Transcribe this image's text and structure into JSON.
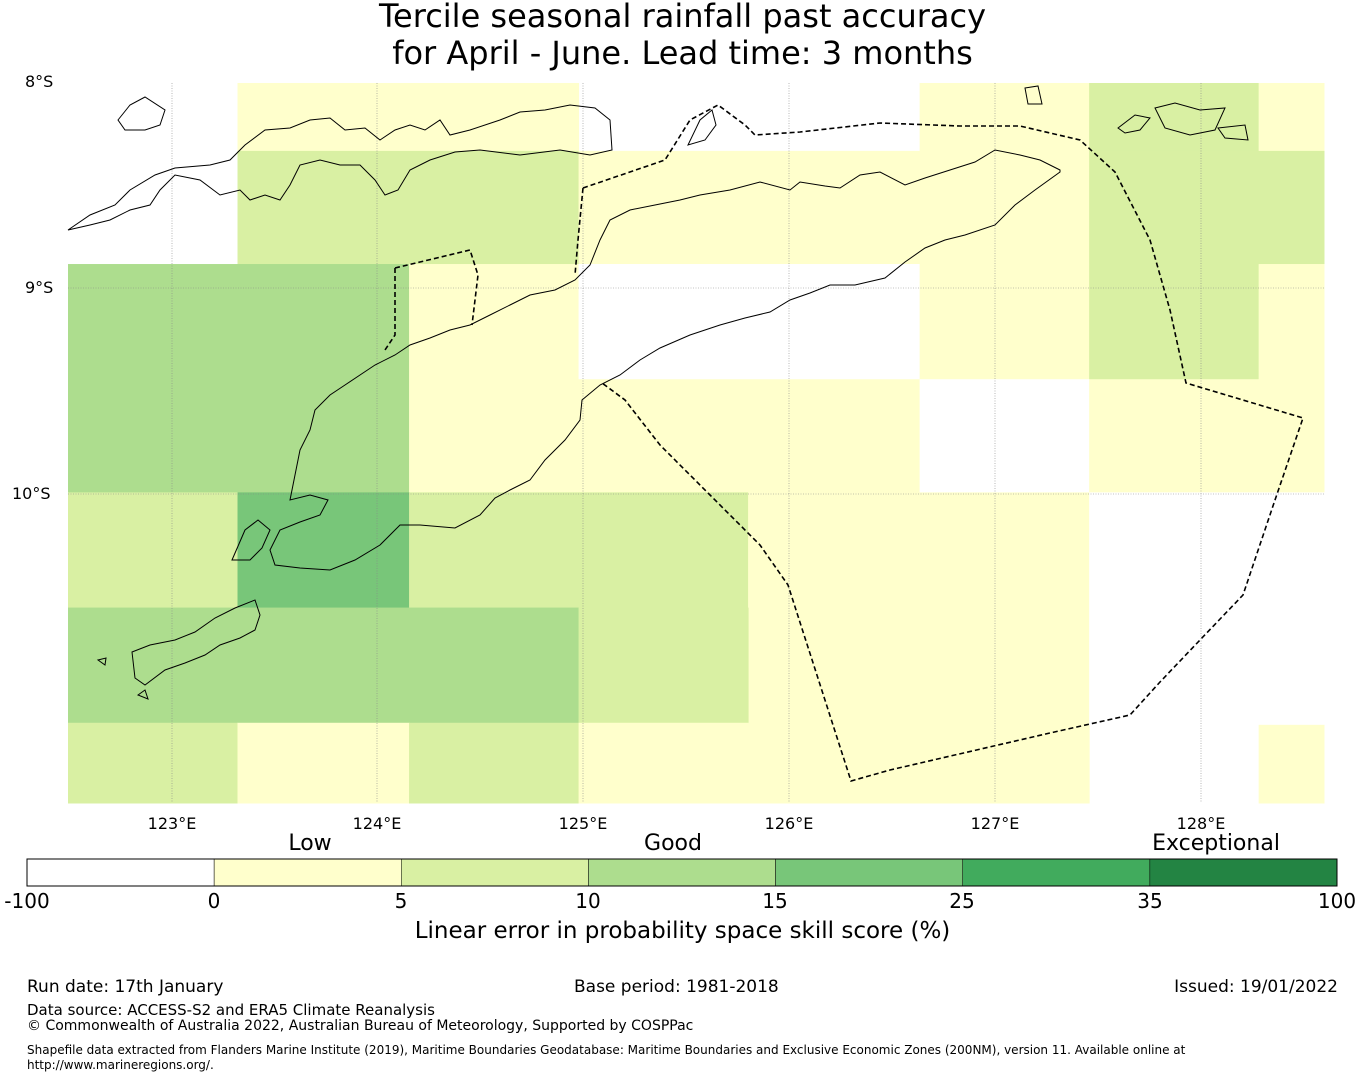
{
  "title_line1": "Tercile seasonal rainfall past accuracy",
  "title_line2": "for April - June. Lead time: 3 months",
  "lat_labels": [
    "8°S",
    "9°S",
    "10°S"
  ],
  "lon_labels": [
    "123°E",
    "124°E",
    "125°E",
    "126°E",
    "127°E",
    "128°E"
  ],
  "colorbar": {
    "categories": [
      "Low",
      "Good",
      "Exceptional"
    ],
    "ticks": [
      "-100",
      "0",
      "5",
      "10",
      "15",
      "25",
      "35",
      "100"
    ],
    "colors": [
      "#ffffff",
      "#ffffcc",
      "#d9f0a3",
      "#addd8e",
      "#78c679",
      "#41ab5d",
      "#238443"
    ],
    "label": "Linear error in probability space skill score (%)"
  },
  "footer": {
    "run_date": "Run date: 17th January",
    "base_period": "Base period: 1981-2018",
    "issued": "Issued: 19/01/2022",
    "data_source": "Data source: ACCESS-S2 and ERA5 Climate Reanalysis",
    "copyright": "© Commonwealth of Australia 2022, Australian Bureau of Meteorology, Supported by COSPPac",
    "shapefile_line1": "Shapefile data extracted from Flanders Marine Institute (2019), Maritime Boundaries Geodatabase: Maritime Boundaries and Exclusive Economic Zones (200NM), version 11. Available online at",
    "shapefile_line2": "http://www.marineregions.org/."
  },
  "map": {
    "lon_range": [
      122.5,
      128.65
    ],
    "lat_range": [
      -8,
      -11.5
    ],
    "cell_size": 0.833,
    "cells": [
      {
        "lon": 123.33,
        "lat": -8.0,
        "w": 1.67,
        "h": 0.33,
        "cat": 1
      },
      {
        "lon": 125.83,
        "lat": -8.0,
        "w": 0.83,
        "h": 0.33,
        "cat": 0
      },
      {
        "lon": 126.67,
        "lat": -8.0,
        "w": 0.83,
        "h": 0.33,
        "cat": 1
      },
      {
        "lon": 127.5,
        "lat": -8.0,
        "w": 0.83,
        "h": 0.33,
        "cat": 2
      },
      {
        "lon": 128.33,
        "lat": -8.0,
        "w": 0.32,
        "h": 0.33,
        "cat": 1
      },
      {
        "lon": 123.33,
        "lat": -8.33,
        "w": 1.67,
        "h": 0.55,
        "cat": 2
      },
      {
        "lon": 125.0,
        "lat": -8.33,
        "w": 2.5,
        "h": 0.55,
        "cat": 1
      },
      {
        "lon": 127.5,
        "lat": -8.33,
        "w": 1.15,
        "h": 0.55,
        "cat": 2
      },
      {
        "lon": 122.5,
        "lat": -8.88,
        "w": 1.67,
        "h": 1.11,
        "cat": 3
      },
      {
        "lon": 124.17,
        "lat": -8.88,
        "w": 0.83,
        "h": 1.11,
        "cat": 1
      },
      {
        "lon": 125.0,
        "lat": -8.88,
        "w": 1.67,
        "h": 0.56,
        "cat": 0
      },
      {
        "lon": 126.67,
        "lat": -8.88,
        "w": 0.83,
        "h": 0.56,
        "cat": 1
      },
      {
        "lon": 127.5,
        "lat": -8.88,
        "w": 0.83,
        "h": 0.56,
        "cat": 2
      },
      {
        "lon": 128.33,
        "lat": -8.88,
        "w": 0.32,
        "h": 0.56,
        "cat": 1
      },
      {
        "lon": 125.0,
        "lat": -9.44,
        "w": 1.67,
        "h": 0.55,
        "cat": 1
      },
      {
        "lon": 126.67,
        "lat": -9.44,
        "w": 0.83,
        "h": 0.55,
        "cat": 0
      },
      {
        "lon": 127.5,
        "lat": -9.44,
        "w": 1.15,
        "h": 0.55,
        "cat": 1
      },
      {
        "lon": 122.5,
        "lat": -9.99,
        "w": 0.83,
        "h": 0.56,
        "cat": 2
      },
      {
        "lon": 123.33,
        "lat": -9.99,
        "w": 0.84,
        "h": 0.56,
        "cat": 4
      },
      {
        "lon": 124.17,
        "lat": -9.99,
        "w": 1.66,
        "h": 0.56,
        "cat": 2
      },
      {
        "lon": 125.83,
        "lat": -9.99,
        "w": 1.67,
        "h": 1.51,
        "cat": 1
      },
      {
        "lon": 127.5,
        "lat": -9.99,
        "w": 1.15,
        "h": 1.13,
        "cat": 0
      },
      {
        "lon": 128.33,
        "lat": -11.12,
        "w": 0.32,
        "h": 0.38,
        "cat": 1
      },
      {
        "lon": 122.5,
        "lat": -10.55,
        "w": 2.5,
        "h": 0.56,
        "cat": 3
      },
      {
        "lon": 125.0,
        "lat": -10.55,
        "w": 0.83,
        "h": 0.56,
        "cat": 2
      },
      {
        "lon": 122.5,
        "lat": -11.11,
        "w": 0.83,
        "h": 0.39,
        "cat": 2
      },
      {
        "lon": 123.33,
        "lat": -11.11,
        "w": 0.84,
        "h": 0.39,
        "cat": 1
      },
      {
        "lon": 124.17,
        "lat": -11.11,
        "w": 0.83,
        "h": 0.39,
        "cat": 2
      },
      {
        "lon": 125.0,
        "lat": -11.11,
        "w": 0.83,
        "h": 0.39,
        "cat": 1
      }
    ]
  }
}
